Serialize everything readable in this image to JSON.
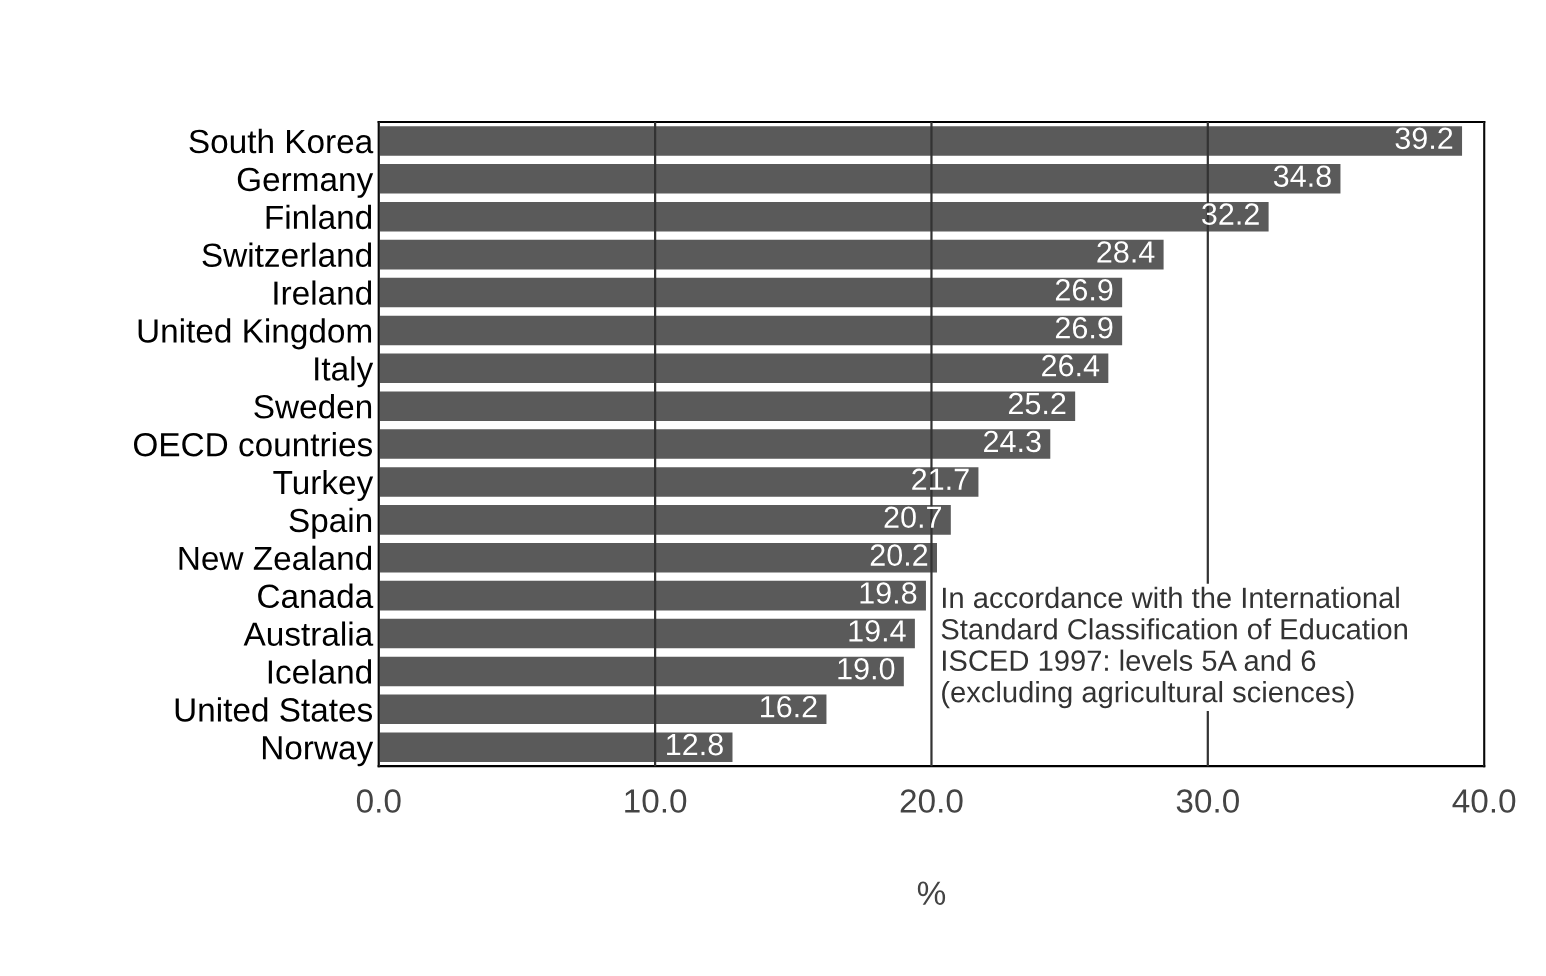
{
  "chart_data": {
    "type": "bar",
    "orientation": "horizontal",
    "xlabel": "%",
    "categories": [
      "South Korea",
      "Germany",
      "Finland",
      "Switzerland",
      "Ireland",
      "United Kingdom",
      "Italy",
      "Sweden",
      "OECD countries",
      "Turkey",
      "Spain",
      "New Zealand",
      "Canada",
      "Australia",
      "Iceland",
      "United States",
      "Norway"
    ],
    "values": [
      39.2,
      34.8,
      32.2,
      28.4,
      26.9,
      26.9,
      26.4,
      25.2,
      24.3,
      21.7,
      20.7,
      20.2,
      19.8,
      19.4,
      19.0,
      16.2,
      12.8
    ],
    "value_labels": [
      "39.2",
      "34.8",
      "32.2",
      "28.4",
      "26.9",
      "26.9",
      "26.4",
      "25.2",
      "24.3",
      "21.7",
      "20.7",
      "20.2",
      "19.8",
      "19.4",
      "19.0",
      "16.2",
      "12.8"
    ],
    "color": "#5a5a5a",
    "xlim": [
      0,
      40
    ],
    "xticks": [
      {
        "value": 0,
        "label": "0.0"
      },
      {
        "value": 10,
        "label": "10.0"
      },
      {
        "value": 20,
        "label": "20.0"
      },
      {
        "value": 30,
        "label": "30.0"
      },
      {
        "value": 40,
        "label": "40.0"
      }
    ],
    "grid": "x",
    "annotations": [
      "In accordance with the International\nStandard Classification of Education\nISCED 1997: levels 5A and 6\n(excluding agricultural sciences)"
    ]
  }
}
